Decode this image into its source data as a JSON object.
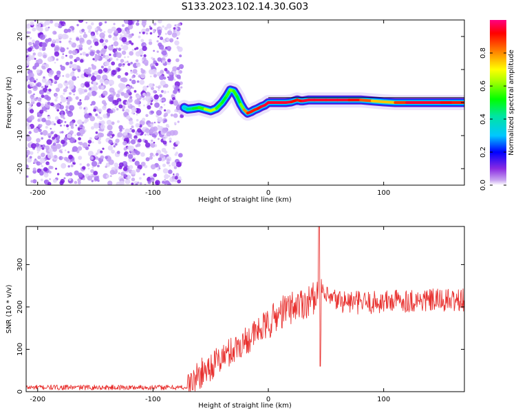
{
  "figure": {
    "title": "S133.2023.102.14.30.G03"
  },
  "chart_data": [
    {
      "type": "heatmap",
      "xlabel": "Height of straight line (km)",
      "ylabel": "Frequency (Hz)",
      "xlim": [
        -210,
        170
      ],
      "ylim": [
        -25,
        25
      ],
      "xticks": [
        -200,
        -100,
        0,
        100
      ],
      "yticks": [
        -20,
        -10,
        0,
        10,
        20
      ],
      "noise_region_x": [
        -210,
        -75
      ],
      "signal_trace": {
        "x": [
          -73,
          -70,
          -65,
          -60,
          -55,
          -50,
          -45,
          -40,
          -36,
          -33,
          -30,
          -27,
          -24,
          -21,
          -18,
          -15,
          -12,
          -9,
          -6,
          -3,
          0,
          5,
          10,
          15,
          20,
          25,
          28,
          30,
          35,
          40,
          50,
          60,
          70,
          80,
          90,
          100,
          110,
          120,
          130,
          140,
          150,
          160,
          170
        ],
        "y": [
          -1.5,
          -2.0,
          -1.8,
          -1.5,
          -2.0,
          -2.5,
          -1.8,
          0.0,
          2.0,
          3.8,
          3.5,
          1.8,
          -0.5,
          -2.2,
          -3.2,
          -2.8,
          -2.2,
          -1.8,
          -1.2,
          -0.8,
          0.0,
          0.0,
          0.0,
          0.0,
          0.2,
          0.8,
          0.5,
          0.5,
          0.8,
          0.8,
          0.8,
          0.8,
          0.8,
          0.8,
          0.5,
          0.2,
          0.0,
          0.0,
          0.0,
          0.0,
          0.0,
          0.0,
          0.0
        ],
        "amplitude": [
          0.3,
          0.4,
          0.5,
          0.5,
          0.6,
          0.7,
          0.6,
          0.5,
          0.5,
          0.6,
          0.6,
          0.5,
          0.5,
          0.7,
          0.9,
          0.9,
          0.9,
          0.9,
          0.95,
          0.95,
          0.95,
          0.95,
          0.95,
          0.95,
          0.95,
          0.9,
          0.9,
          0.95,
          0.95,
          0.95,
          0.95,
          0.95,
          0.95,
          0.9,
          0.8,
          0.7,
          0.8,
          0.95,
          0.95,
          0.95,
          0.95,
          0.9,
          0.9
        ]
      },
      "colorbar": {
        "label": "Normalized spectral amplitude",
        "ticks": [
          0.0,
          0.2,
          0.4,
          0.6,
          0.8
        ],
        "range": [
          0,
          1
        ]
      }
    },
    {
      "type": "line",
      "xlabel": "Height of straight line (km)",
      "ylabel": "SNR (10 * v/v)",
      "xlim": [
        -210,
        170
      ],
      "ylim": [
        0,
        390
      ],
      "xticks": [
        -200,
        -100,
        0,
        100
      ],
      "yticks": [
        0,
        100,
        200,
        300
      ],
      "series": [
        {
          "color": "#e8312f",
          "x": [
            -210,
            -200,
            -180,
            -160,
            -140,
            -120,
            -100,
            -80,
            -70,
            -60,
            -50,
            -40,
            -30,
            -20,
            -10,
            0,
            10,
            20,
            30,
            40,
            43,
            44,
            45,
            46,
            50,
            60,
            70,
            80,
            90,
            100,
            110,
            120,
            130,
            140,
            150,
            160,
            170
          ],
          "y": [
            10,
            10,
            10,
            10,
            10,
            10,
            10,
            10,
            10,
            40,
            60,
            80,
            100,
            120,
            140,
            160,
            185,
            200,
            210,
            220,
            240,
            390,
            60,
            240,
            220,
            215,
            212,
            210,
            210,
            212,
            215,
            215,
            215,
            215,
            215,
            215,
            215
          ]
        }
      ]
    }
  ]
}
